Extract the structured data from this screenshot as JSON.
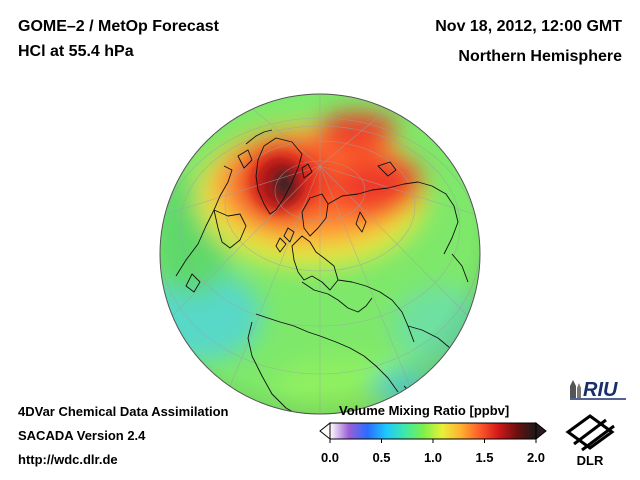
{
  "header": {
    "title": "GOME–2 / MetOp Forecast",
    "subtitle": "HCl at 55.4 hPa",
    "date": "Nov 18, 2012, 12:00 GMT",
    "region": "Northern Hemisphere"
  },
  "footer": {
    "line1": "4DVar Chemical Data Assimilation",
    "line2": "SACADA Version 2.4",
    "line3": "http://wdc.dlr.de"
  },
  "colorbar": {
    "title": "Volume Mixing Ratio [ppbv]",
    "ticks": [
      "0.0",
      "0.5",
      "1.0",
      "1.5",
      "2.0"
    ],
    "min": 0.0,
    "max": 2.0,
    "colors": [
      "#ffffff",
      "#9a5fd6",
      "#2a6cff",
      "#1ec8ff",
      "#3ee8a8",
      "#7ef04a",
      "#e8f03a",
      "#ffb030",
      "#ff5a2a",
      "#d01818",
      "#6a1010",
      "#1a1a1a"
    ]
  },
  "map": {
    "projection": "orthographic",
    "center": "North Pole",
    "colors": {
      "base": "#7ee86a",
      "ocean_green": "#5fd86a",
      "cyan": "#58d8c8",
      "yellow": "#e8e840",
      "orange": "#ff9a3a",
      "red": "#f03a2a",
      "dark_red": "#b01818",
      "core": "#3a2020"
    }
  },
  "logos": {
    "riu": "RIU",
    "dlr": "DLR"
  }
}
